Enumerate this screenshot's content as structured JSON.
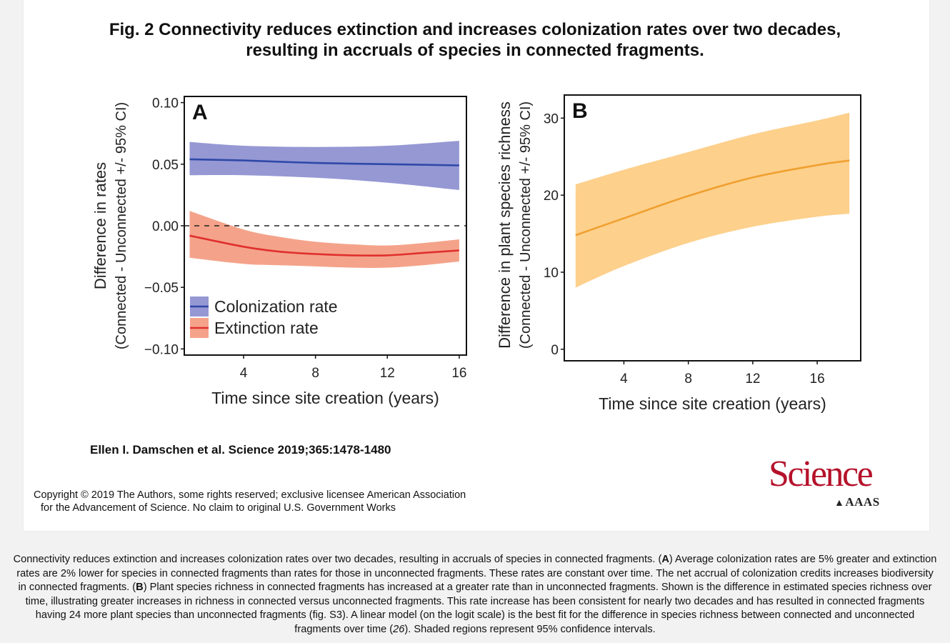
{
  "figure": {
    "title_line1": "Fig. 2 Connectivity reduces extinction and increases colonization rates over two decades,",
    "title_line2": "resulting in accruals of species in connected fragments.",
    "citation": "Ellen I. Damschen et al. Science 2019;365:1478-1480",
    "copyright_line1": "Copyright © 2019 The Authors, some rights reserved; exclusive licensee American Association",
    "copyright_line2": "for the Advancement of Science. No claim to original U.S. Government Works",
    "logo_word": "Science",
    "logo_sub": "AAAS",
    "caption": {
      "t1": "Connectivity reduces extinction and increases colonization rates over two decades, resulting in accruals of species in connected fragments. (",
      "b1": "A",
      "t2": ") Average colonization rates are 5% greater and extinction rates are 2% lower for species in connected fragments than rates for those in unconnected fragments. These rates are constant over time. The net accrual of colonization credits increases biodiversity in connected fragments. (",
      "b2": "B",
      "t3": ") Plant species richness in connected fragments has increased at a greater rate than in unconnected fragments. Shown is the difference in estimated species richness over time, illustrating greater increases in richness in connected versus unconnected fragments. This rate increase has been consistent for nearly two decades and has resulted in connected fragments having 24 more plant species than unconnected fragments (fig. S3). A linear model (on the logit scale) is the best fit for the difference in species richness between connected and unconnected fragments over time (",
      "i1": "26",
      "t4": "). Shaded regions represent 95% confidence intervals."
    }
  },
  "chart_data": [
    {
      "type": "line",
      "panel_label": "A",
      "xlabel": "Time since site creation (years)",
      "ylabel_line1": "Difference in rates",
      "ylabel_line2": "(Connected - Unconnected +/- 95% CI)",
      "xlim": [
        0.7,
        16.4
      ],
      "ylim": [
        -0.105,
        0.105
      ],
      "xticks": [
        4,
        8,
        12,
        16
      ],
      "xtick_labels": [
        "4",
        "8",
        "12",
        "16"
      ],
      "yticks": [
        -0.1,
        -0.05,
        0.0,
        0.05,
        0.1
      ],
      "ytick_labels": [
        "−0.10",
        "−0.05",
        "0.00",
        "0.05",
        "0.10"
      ],
      "reference_line": 0,
      "legend_position": "bottom-left",
      "series": [
        {
          "name": "Colonization rate",
          "color": "#2f48a8",
          "fill": "#9598d3",
          "x": [
            1,
            4,
            8,
            12,
            16
          ],
          "y": [
            0.054,
            0.053,
            0.051,
            0.05,
            0.049
          ],
          "lower": [
            0.041,
            0.041,
            0.039,
            0.035,
            0.029
          ],
          "upper": [
            0.068,
            0.065,
            0.064,
            0.065,
            0.069
          ]
        },
        {
          "name": "Extinction rate",
          "color": "#e0302e",
          "fill": "#f4a38a",
          "x": [
            1,
            4,
            6,
            8,
            10,
            12,
            14,
            16
          ],
          "y": [
            -0.008,
            -0.017,
            -0.021,
            -0.023,
            -0.024,
            -0.024,
            -0.022,
            -0.02
          ],
          "lower": [
            -0.026,
            -0.031,
            -0.032,
            -0.033,
            -0.034,
            -0.034,
            -0.032,
            -0.029
          ],
          "upper": [
            0.012,
            -0.003,
            -0.009,
            -0.013,
            -0.015,
            -0.016,
            -0.014,
            -0.011
          ]
        }
      ]
    },
    {
      "type": "line",
      "panel_label": "B",
      "xlabel": "Time since site creation (years)",
      "ylabel_line1": "Difference in plant species richness",
      "ylabel_line2": "(Connected - Unconnected +/- 95% CI)",
      "xlim": [
        0.3,
        18.7
      ],
      "ylim": [
        -1.5,
        33
      ],
      "xticks": [
        4,
        8,
        12,
        16
      ],
      "xtick_labels": [
        "4",
        "8",
        "12",
        "16"
      ],
      "yticks": [
        0,
        10,
        20,
        30
      ],
      "ytick_labels": [
        "0",
        "10",
        "20",
        "30"
      ],
      "series": [
        {
          "name": "Species richness difference",
          "color": "#f0a030",
          "fill": "#fdd08c",
          "x": [
            1,
            4,
            8,
            12,
            16,
            18
          ],
          "y": [
            14.8,
            17.0,
            19.9,
            22.3,
            23.9,
            24.5
          ],
          "lower": [
            8.0,
            10.8,
            13.8,
            15.9,
            17.2,
            17.6
          ],
          "upper": [
            21.4,
            23.3,
            25.6,
            27.9,
            29.7,
            30.7
          ]
        }
      ]
    }
  ]
}
